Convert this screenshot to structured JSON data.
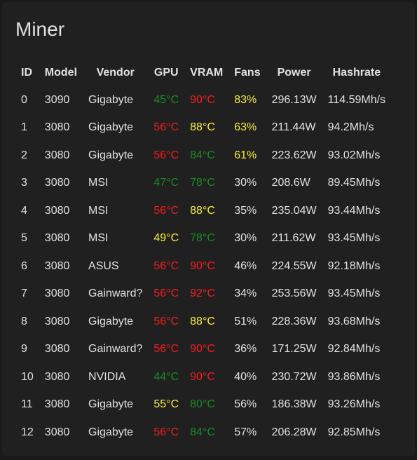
{
  "title": "Miner",
  "colors": {
    "background": "#1a1a1a",
    "card": "#202020",
    "text": "#e1e1e1",
    "red": "#f61c1c",
    "yellow": "#f5ef32",
    "green": "#1a8b24"
  },
  "columns": [
    "ID",
    "Model",
    "Vendor",
    "GPU",
    "VRAM",
    "Fans",
    "Power",
    "Hashrate"
  ],
  "rows": [
    {
      "id": "0",
      "model": "3090",
      "vendor": "Gigabyte",
      "gpu": "45°C",
      "gpu_color": "green",
      "vram": "90°C",
      "vram_color": "red",
      "fans": "83%",
      "fans_color": "yellow",
      "power": "296.13W",
      "hashrate": "114.59Mh/s"
    },
    {
      "id": "1",
      "model": "3080",
      "vendor": "Gigabyte",
      "gpu": "56°C",
      "gpu_color": "red",
      "vram": "88°C",
      "vram_color": "yellow",
      "fans": "63%",
      "fans_color": "yellow",
      "power": "211.44W",
      "hashrate": "94.2Mh/s"
    },
    {
      "id": "2",
      "model": "3080",
      "vendor": "Gigabyte",
      "gpu": "56°C",
      "gpu_color": "red",
      "vram": "84°C",
      "vram_color": "green",
      "fans": "61%",
      "fans_color": "yellow",
      "power": "223.62W",
      "hashrate": "93.02Mh/s"
    },
    {
      "id": "3",
      "model": "3080",
      "vendor": "MSI",
      "gpu": "47°C",
      "gpu_color": "green",
      "vram": "78°C",
      "vram_color": "green",
      "fans": "30%",
      "fans_color": "white",
      "power": "208.6W",
      "hashrate": "89.45Mh/s"
    },
    {
      "id": "4",
      "model": "3080",
      "vendor": "MSI",
      "gpu": "56°C",
      "gpu_color": "red",
      "vram": "88°C",
      "vram_color": "yellow",
      "fans": "35%",
      "fans_color": "white",
      "power": "235.04W",
      "hashrate": "93.44Mh/s"
    },
    {
      "id": "5",
      "model": "3080",
      "vendor": "MSI",
      "gpu": "49°C",
      "gpu_color": "yellow",
      "vram": "78°C",
      "vram_color": "green",
      "fans": "30%",
      "fans_color": "white",
      "power": "211.62W",
      "hashrate": "93.45Mh/s"
    },
    {
      "id": "6",
      "model": "3080",
      "vendor": "ASUS",
      "gpu": "56°C",
      "gpu_color": "red",
      "vram": "90°C",
      "vram_color": "red",
      "fans": "46%",
      "fans_color": "white",
      "power": "224.55W",
      "hashrate": "92.18Mh/s"
    },
    {
      "id": "7",
      "model": "3080",
      "vendor": "Gainward?",
      "gpu": "56°C",
      "gpu_color": "red",
      "vram": "92°C",
      "vram_color": "red",
      "fans": "34%",
      "fans_color": "white",
      "power": "253.56W",
      "hashrate": "93.45Mh/s"
    },
    {
      "id": "8",
      "model": "3080",
      "vendor": "Gigabyte",
      "gpu": "56°C",
      "gpu_color": "red",
      "vram": "88°C",
      "vram_color": "yellow",
      "fans": "51%",
      "fans_color": "white",
      "power": "228.36W",
      "hashrate": "93.68Mh/s"
    },
    {
      "id": "9",
      "model": "3080",
      "vendor": "Gainward?",
      "gpu": "56°C",
      "gpu_color": "red",
      "vram": "90°C",
      "vram_color": "red",
      "fans": "36%",
      "fans_color": "white",
      "power": "171.25W",
      "hashrate": "92.84Mh/s"
    },
    {
      "id": "10",
      "model": "3080",
      "vendor": "NVIDIA",
      "gpu": "44°C",
      "gpu_color": "green",
      "vram": "90°C",
      "vram_color": "red",
      "fans": "40%",
      "fans_color": "white",
      "power": "230.72W",
      "hashrate": "93.86Mh/s"
    },
    {
      "id": "11",
      "model": "3080",
      "vendor": "Gigabyte",
      "gpu": "55°C",
      "gpu_color": "yellow",
      "vram": "80°C",
      "vram_color": "green",
      "fans": "56%",
      "fans_color": "white",
      "power": "186.38W",
      "hashrate": "93.26Mh/s"
    },
    {
      "id": "12",
      "model": "3080",
      "vendor": "Gigabyte",
      "gpu": "56°C",
      "gpu_color": "red",
      "vram": "84°C",
      "vram_color": "green",
      "fans": "57%",
      "fans_color": "white",
      "power": "206.28W",
      "hashrate": "92.85Mh/s"
    }
  ]
}
